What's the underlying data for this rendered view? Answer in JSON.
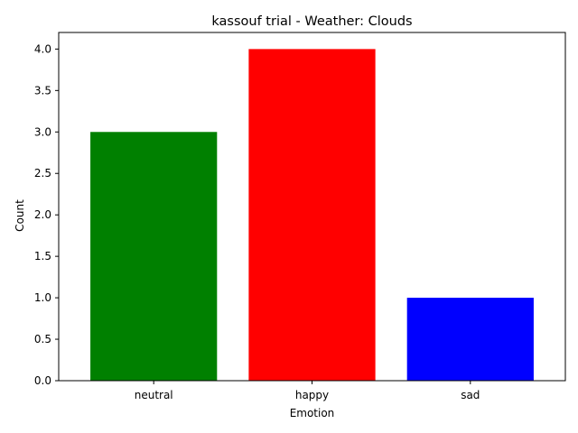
{
  "chart_data": {
    "type": "bar",
    "title": "kassouf trial - Weather: Clouds",
    "xlabel": "Emotion",
    "ylabel": "Count",
    "categories": [
      "neutral",
      "happy",
      "sad"
    ],
    "values": [
      3,
      4,
      1
    ],
    "colors": [
      "#008000",
      "#ff0000",
      "#0000ff"
    ],
    "ylim": [
      0,
      4.2
    ],
    "yticks": [
      "0.0",
      "0.5",
      "1.0",
      "1.5",
      "2.0",
      "2.5",
      "3.0",
      "3.5",
      "4.0"
    ],
    "grid": false,
    "legend": "none"
  }
}
